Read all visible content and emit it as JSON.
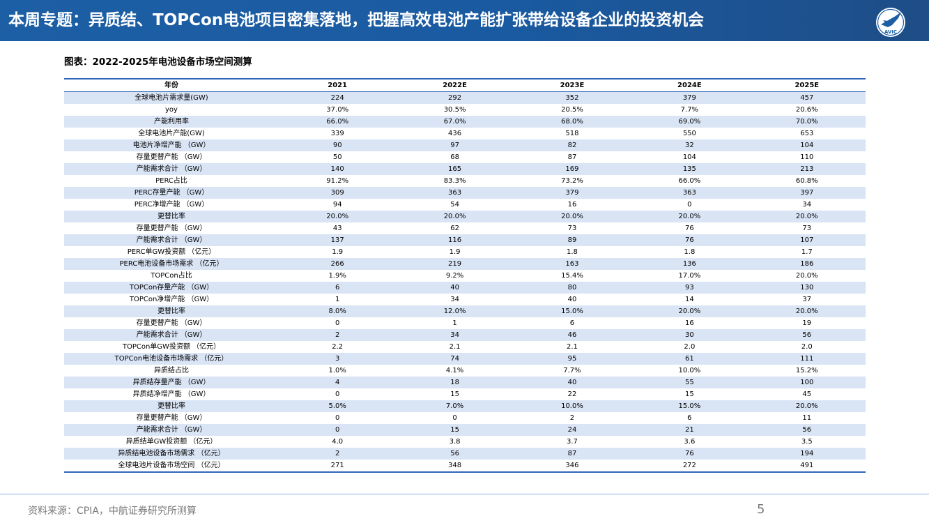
{
  "header": {
    "title": "本周专题：异质结、TOPCon电池项目密集落地，把握高效电池产能扩张带给设备企业的投资机会",
    "logo_text": "AVIC",
    "logo_icon": "avic-plane-logo"
  },
  "chart_title": "图表：2022-2025年电池设备市场空间测算",
  "table": {
    "columns": [
      "年份",
      "2021",
      "2022E",
      "2023E",
      "2024E",
      "2025E"
    ],
    "rows": [
      [
        "全球电池片需求量(GW)",
        "224",
        "292",
        "352",
        "379",
        "457"
      ],
      [
        "yoy",
        "37.0%",
        "30.5%",
        "20.5%",
        "7.7%",
        "20.6%"
      ],
      [
        "产能利用率",
        "66.0%",
        "67.0%",
        "68.0%",
        "69.0%",
        "70.0%"
      ],
      [
        "全球电池片产能(GW)",
        "339",
        "436",
        "518",
        "550",
        "653"
      ],
      [
        "电池片净增产能 （GW）",
        "90",
        "97",
        "82",
        "32",
        "104"
      ],
      [
        "存量更替产能 （GW）",
        "50",
        "68",
        "87",
        "104",
        "110"
      ],
      [
        "产能需求合计 （GW）",
        "140",
        "165",
        "169",
        "135",
        "213"
      ],
      [
        "PERC占比",
        "91.2%",
        "83.3%",
        "73.2%",
        "66.0%",
        "60.8%"
      ],
      [
        "PERC存量产能 （GW）",
        "309",
        "363",
        "379",
        "363",
        "397"
      ],
      [
        "PERC净增产能 （GW）",
        "94",
        "54",
        "16",
        "0",
        "34"
      ],
      [
        "更替比率",
        "20.0%",
        "20.0%",
        "20.0%",
        "20.0%",
        "20.0%"
      ],
      [
        "存量更替产能 （GW）",
        "43",
        "62",
        "73",
        "76",
        "73"
      ],
      [
        "产能需求合计 （GW）",
        "137",
        "116",
        "89",
        "76",
        "107"
      ],
      [
        "PERC单GW投资额 （亿元）",
        "1.9",
        "1.9",
        "1.8",
        "1.8",
        "1.7"
      ],
      [
        "PERC电池设备市场需求 （亿元）",
        "266",
        "219",
        "163",
        "136",
        "186"
      ],
      [
        "TOPCon占比",
        "1.9%",
        "9.2%",
        "15.4%",
        "17.0%",
        "20.0%"
      ],
      [
        "TOPCon存量产能 （GW）",
        "6",
        "40",
        "80",
        "93",
        "130"
      ],
      [
        "TOPCon净增产能 （GW）",
        "1",
        "34",
        "40",
        "14",
        "37"
      ],
      [
        "更替比率",
        "8.0%",
        "12.0%",
        "15.0%",
        "20.0%",
        "20.0%"
      ],
      [
        "存量更替产能 （GW）",
        "0",
        "1",
        "6",
        "16",
        "19"
      ],
      [
        "产能需求合计 （GW）",
        "2",
        "34",
        "46",
        "30",
        "56"
      ],
      [
        "TOPCon单GW投资额 （亿元）",
        "2.2",
        "2.1",
        "2.1",
        "2.0",
        "2.0"
      ],
      [
        "TOPCon电池设备市场需求 （亿元）",
        "3",
        "74",
        "95",
        "61",
        "111"
      ],
      [
        "异质结占比",
        "1.0%",
        "4.1%",
        "7.7%",
        "10.0%",
        "15.2%"
      ],
      [
        "异质结存量产能 （GW）",
        "4",
        "18",
        "40",
        "55",
        "100"
      ],
      [
        "异质结净增产能 （GW）",
        "0",
        "15",
        "22",
        "15",
        "45"
      ],
      [
        "更替比率",
        "5.0%",
        "7.0%",
        "10.0%",
        "15.0%",
        "20.0%"
      ],
      [
        "存量更替产能 （GW）",
        "0",
        "0",
        "2",
        "6",
        "11"
      ],
      [
        "产能需求合计 （GW）",
        "0",
        "15",
        "24",
        "21",
        "56"
      ],
      [
        "异质结单GW投资额 （亿元）",
        "4.0",
        "3.8",
        "3.7",
        "3.6",
        "3.5"
      ],
      [
        "异质结电池设备市场需求 （亿元）",
        "2",
        "56",
        "87",
        "76",
        "194"
      ],
      [
        "全球电池片设备市场空间 （亿元）",
        "271",
        "348",
        "346",
        "272",
        "491"
      ]
    ]
  },
  "footer": {
    "source": "资料来源：CPIA，中航证券研究所测算",
    "page_number": "5"
  },
  "colors": {
    "header_blue": "#1d5fa5",
    "table_border": "#2e63b8",
    "row_stripe": "#d9e4f5"
  }
}
